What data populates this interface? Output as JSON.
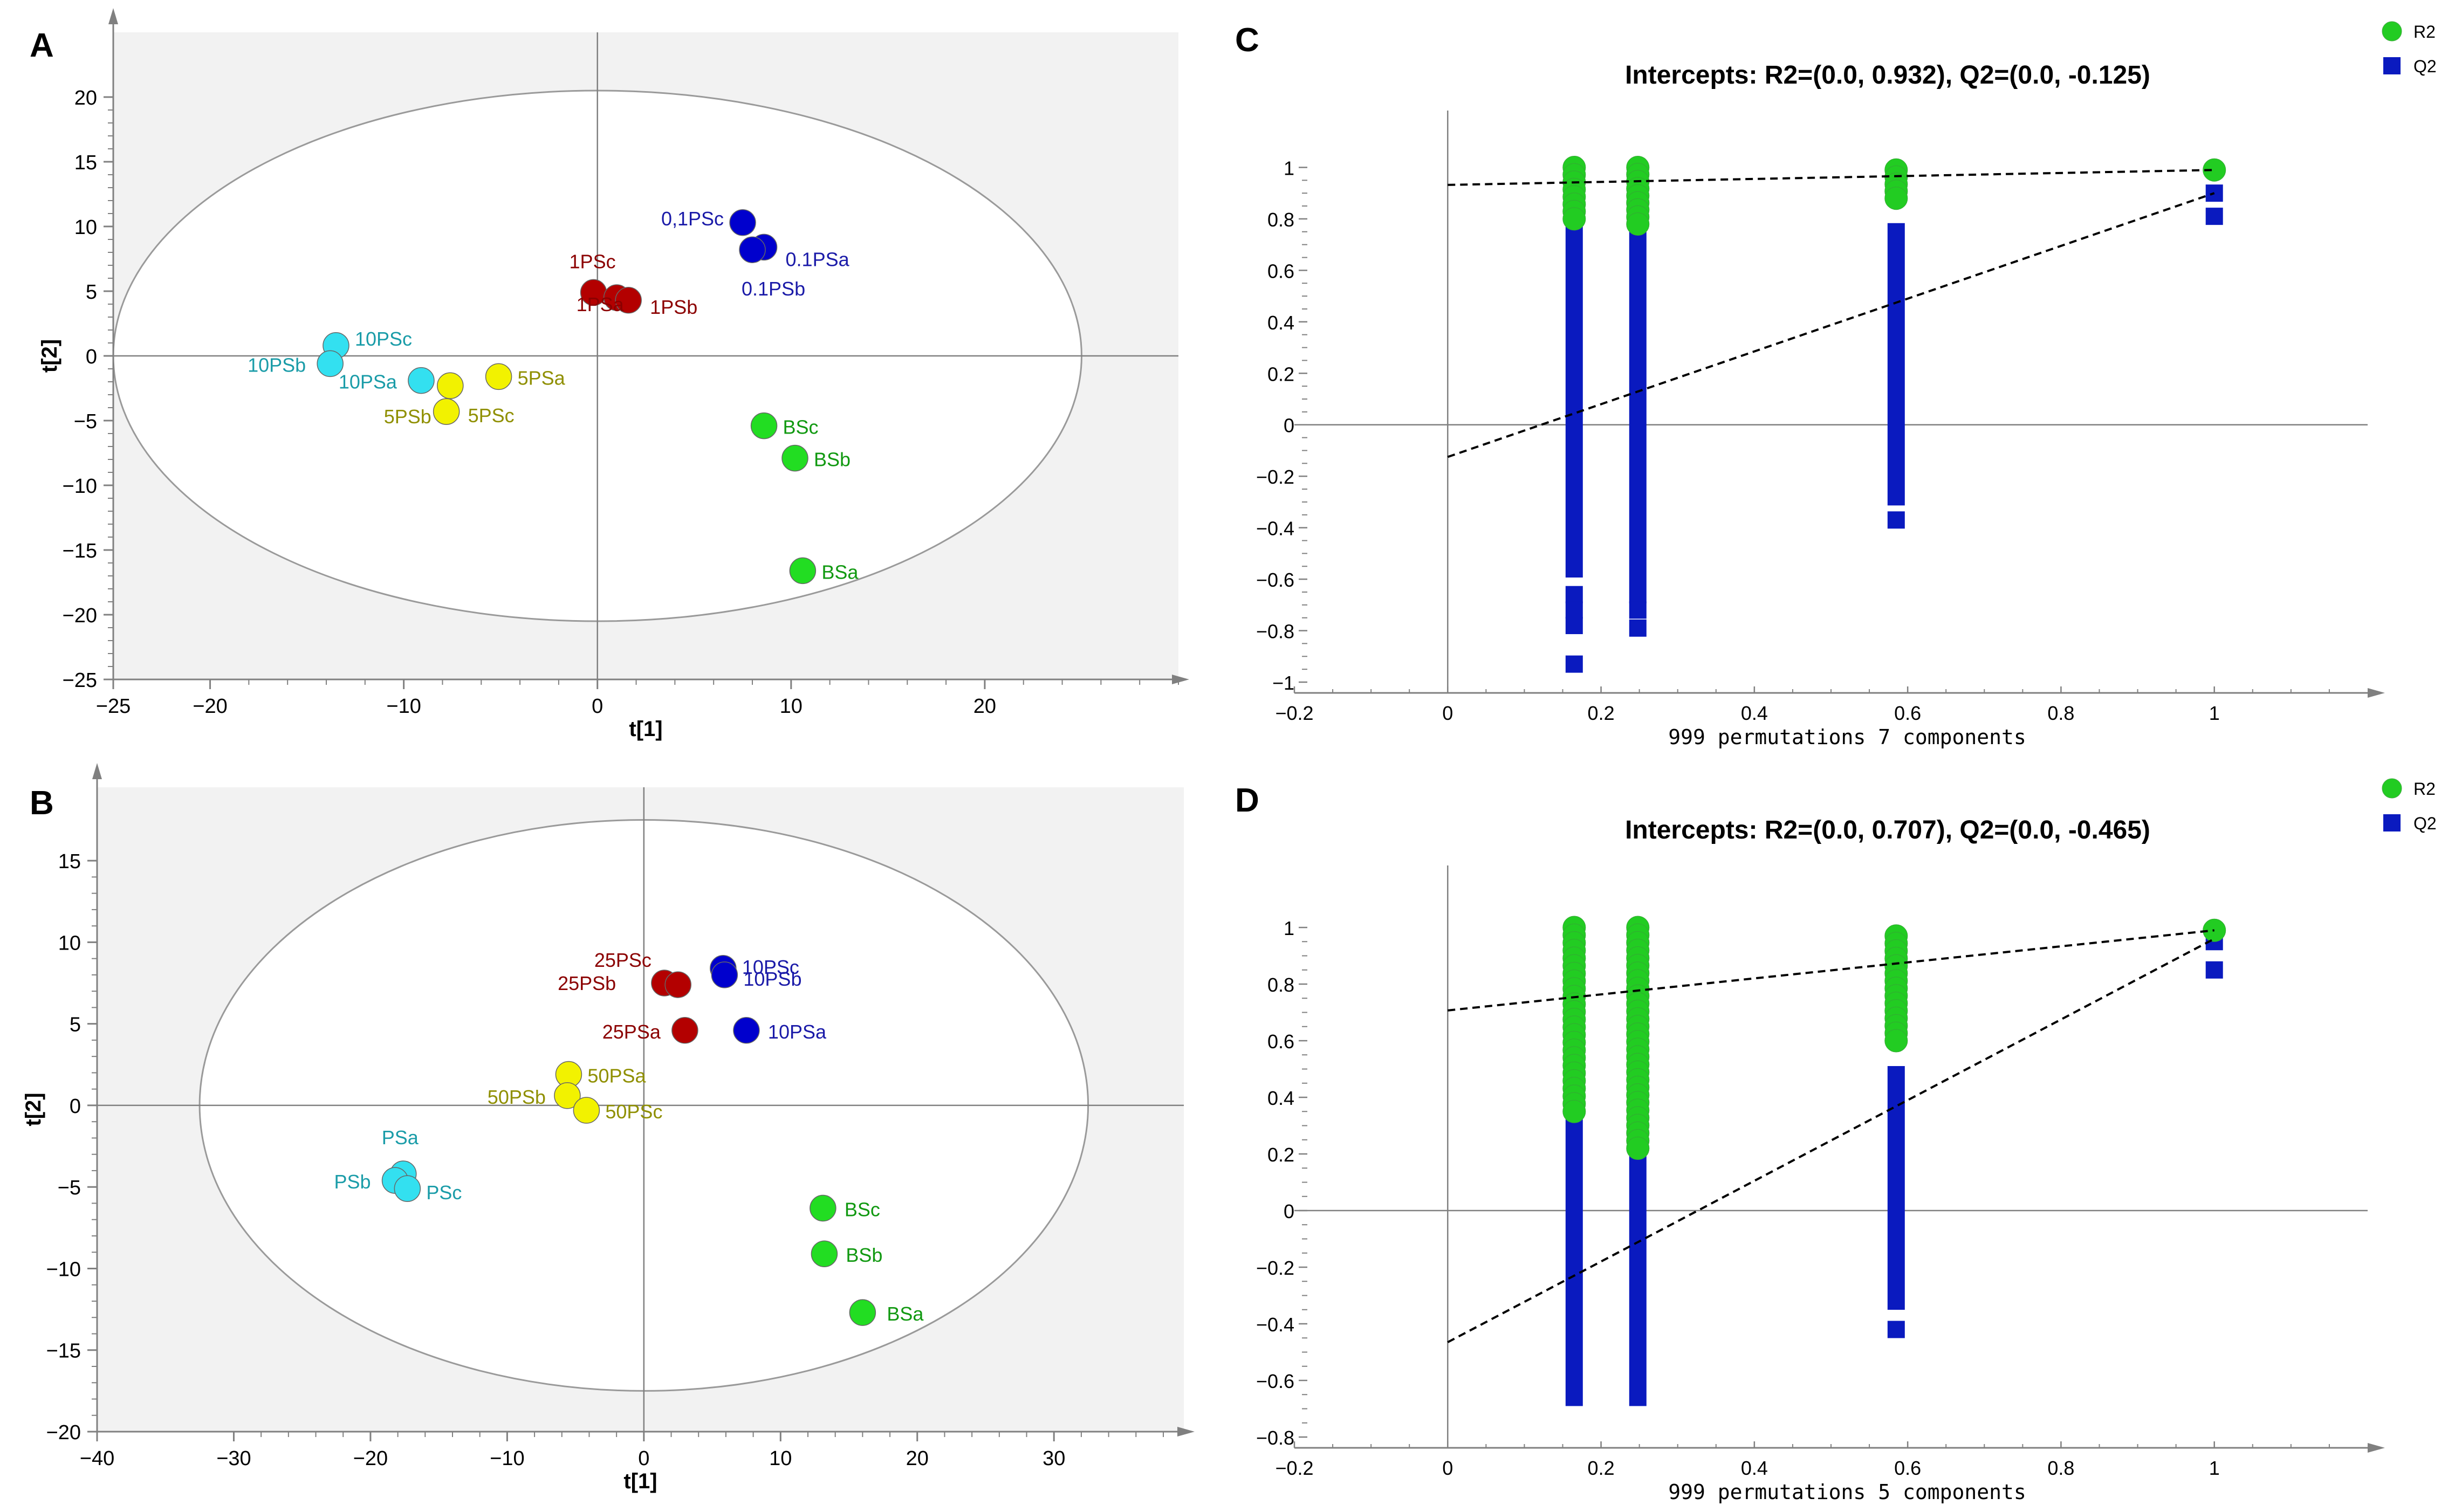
{
  "colors": {
    "plot_bg": "#f2f2f2",
    "axis": "#808080",
    "ellipse": "#9a9a9a",
    "blue": "#0000cd",
    "blue_text": "#1a1aa8",
    "red": "#b30000",
    "red_text": "#8b0000",
    "cyan": "#33e0f0",
    "cyan_text": "#1a9ca8",
    "yellow": "#f2f200",
    "yellow_text": "#8f8f00",
    "green": "#22dd22",
    "green_text": "#119911",
    "r2": "#22cc22",
    "q2": "#0a1abf"
  },
  "chart_data": [
    {
      "panel": "A",
      "type": "scatter",
      "xlabel": "t[1]",
      "ylabel": "t[2]",
      "xlim": [
        -25,
        30
      ],
      "ylim": [
        -25,
        25
      ],
      "xticks": [
        "−25",
        "−20",
        "−10",
        "0",
        "10",
        "20"
      ],
      "xtick_values": [
        -25,
        -20,
        -10,
        0,
        10,
        20
      ],
      "yticks": [
        "20",
        "15",
        "10",
        "5",
        "0",
        "−5",
        "−10",
        "−15",
        "−20",
        "−25"
      ],
      "ytick_values": [
        20,
        15,
        10,
        5,
        0,
        -5,
        -10,
        -15,
        -20,
        -25
      ],
      "ellipse": {
        "cx": 0,
        "cy": 0,
        "rx": 25,
        "ry": 20.5
      },
      "groups": [
        {
          "group": "blue",
          "points": [
            {
              "label": "0,1PSc",
              "x": 7.5,
              "y": 10.3
            },
            {
              "label": "0.1PSa",
              "x": 8.6,
              "y": 8.4
            },
            {
              "label": "0.1PSb",
              "x": 8.0,
              "y": 8.2
            }
          ]
        },
        {
          "group": "red",
          "points": [
            {
              "label": "1PSc",
              "x": -0.2,
              "y": 4.9
            },
            {
              "label": "1PSa",
              "x": 1.0,
              "y": 4.5
            },
            {
              "label": "1PSb",
              "x": 1.6,
              "y": 4.3
            }
          ]
        },
        {
          "group": "cyan",
          "points": [
            {
              "label": "10PSc",
              "x": -13.5,
              "y": 0.8
            },
            {
              "label": "10PSb",
              "x": -13.8,
              "y": -0.6
            },
            {
              "label": "10PSa",
              "x": -9.1,
              "y": -1.9
            }
          ]
        },
        {
          "group": "yellow",
          "points": [
            {
              "label": "5PSa",
              "x": -5.1,
              "y": -1.6
            },
            {
              "label": "5PSb",
              "x": -7.6,
              "y": -2.3
            },
            {
              "label": "5PSc",
              "x": -7.8,
              "y": -4.3
            }
          ]
        },
        {
          "group": "green",
          "points": [
            {
              "label": "BSc",
              "x": 8.6,
              "y": -5.4
            },
            {
              "label": "BSb",
              "x": 10.2,
              "y": -7.9
            },
            {
              "label": "BSa",
              "x": 10.6,
              "y": -16.6
            }
          ]
        }
      ]
    },
    {
      "panel": "B",
      "type": "scatter",
      "xlabel": "t[1]",
      "ylabel": "t[2]",
      "xlim": [
        -40,
        40
      ],
      "ylim": [
        -20,
        20
      ],
      "xticks": [
        "−40",
        "−30",
        "−20",
        "−10",
        "0",
        "10",
        "20",
        "30"
      ],
      "xtick_values": [
        -40,
        -30,
        -20,
        -10,
        0,
        10,
        20,
        30
      ],
      "yticks": [
        "15",
        "10",
        "5",
        "0",
        "−5",
        "−10",
        "−15",
        "−20"
      ],
      "ytick_values": [
        15,
        10,
        5,
        0,
        -5,
        -10,
        -15,
        -20
      ],
      "ellipse": {
        "cx": 0,
        "cy": 0,
        "rx": 32.5,
        "ry": 17.5
      },
      "groups": [
        {
          "group": "blue",
          "points": [
            {
              "label": "10PSc",
              "x": 5.8,
              "y": 8.4
            },
            {
              "label": "10PSb",
              "x": 5.9,
              "y": 8.0
            },
            {
              "label": "10PSa",
              "x": 7.5,
              "y": 4.6
            }
          ]
        },
        {
          "group": "red",
          "points": [
            {
              "label": "25PSc",
              "x": 1.5,
              "y": 7.5
            },
            {
              "label": "25PSb",
              "x": 2.5,
              "y": 7.4
            },
            {
              "label": "25PSa",
              "x": 3.0,
              "y": 4.6
            }
          ]
        },
        {
          "group": "yellow",
          "points": [
            {
              "label": "50PSa",
              "x": -5.5,
              "y": 1.9
            },
            {
              "label": "50PSb",
              "x": -5.6,
              "y": 0.6
            },
            {
              "label": "50PSc",
              "x": -4.2,
              "y": -0.3
            }
          ]
        },
        {
          "group": "cyan",
          "points": [
            {
              "label": "PSa",
              "x": -17.6,
              "y": -4.2
            },
            {
              "label": "PSb",
              "x": -18.2,
              "y": -4.6
            },
            {
              "label": "PSc",
              "x": -17.3,
              "y": -5.1
            }
          ]
        },
        {
          "group": "green",
          "points": [
            {
              "label": "BSc",
              "x": 13.1,
              "y": -6.3
            },
            {
              "label": "BSb",
              "x": 13.2,
              "y": -9.1
            },
            {
              "label": "BSa",
              "x": 16.0,
              "y": -12.7
            }
          ]
        }
      ]
    },
    {
      "panel": "C",
      "type": "permutation-scatter",
      "title": "Intercepts: R2=(0.0, 0.932), Q2=(0.0, -0.125)",
      "xlabel": "999 permutations 7 components",
      "legend": [
        "R2",
        "Q2"
      ],
      "xlim": [
        -0.2,
        1.2
      ],
      "ylim": [
        -1,
        1.2
      ],
      "xticks": [
        "−0.2",
        "0",
        "0.2",
        "0.4",
        "0.6",
        "0.8",
        "1"
      ],
      "xtick_values": [
        -0.2,
        0,
        0.2,
        0.4,
        0.6,
        0.8,
        1
      ],
      "yticks": [
        "1",
        "0.8",
        "0.6",
        "0.4",
        "0.2",
        "0",
        "−0.2",
        "−0.4",
        "−0.6",
        "−0.8",
        "−1"
      ],
      "ytick_values": [
        1,
        0.8,
        0.6,
        0.4,
        0.2,
        0,
        -0.2,
        -0.4,
        -0.6,
        -0.8,
        -1
      ],
      "r2_columns": [
        {
          "x": 0.165,
          "from": 0.8,
          "to": 1.0
        },
        {
          "x": 0.248,
          "from": 0.78,
          "to": 1.0
        },
        {
          "x": 0.585,
          "from": 0.88,
          "to": 0.99
        }
      ],
      "q2_columns": [
        {
          "x": 0.165,
          "from": -0.56,
          "to": 0.76,
          "extras": [
            -0.66,
            -0.72,
            -0.78,
            -0.93
          ]
        },
        {
          "x": 0.248,
          "from": -0.66,
          "to": 0.9,
          "extras": [
            -0.72,
            -0.79
          ]
        },
        {
          "x": 0.585,
          "from": -0.28,
          "to": 0.75,
          "extras": [
            -0.37
          ]
        }
      ],
      "r2_actual": {
        "x": 1.0,
        "y": 0.99
      },
      "q2_actual": [
        {
          "x": 1.0,
          "y": 0.9
        },
        {
          "x": 1.0,
          "y": 0.81
        }
      ],
      "r2_line": {
        "x0": 0,
        "y0": 0.932,
        "x1": 1.0,
        "y1": 0.99
      },
      "q2_line": {
        "x0": 0,
        "y0": -0.125,
        "x1": 1.0,
        "y1": 0.9
      }
    },
    {
      "panel": "D",
      "type": "permutation-scatter",
      "title": "Intercepts: R2=(0.0, 0.707), Q2=(0.0, -0.465)",
      "xlabel": "999 permutations 5 components",
      "legend": [
        "R2",
        "Q2"
      ],
      "xlim": [
        -0.2,
        1.2
      ],
      "ylim": [
        -0.8,
        1.2
      ],
      "xticks": [
        "−0.2",
        "0",
        "0.2",
        "0.4",
        "0.6",
        "0.8",
        "1"
      ],
      "xtick_values": [
        -0.2,
        0,
        0.2,
        0.4,
        0.6,
        0.8,
        1
      ],
      "yticks": [
        "1",
        "0.8",
        "0.6",
        "0.4",
        "0.2",
        "0",
        "−0.2",
        "−0.4",
        "−0.6",
        "−0.8"
      ],
      "ytick_values": [
        1,
        0.8,
        0.6,
        0.4,
        0.2,
        0,
        -0.2,
        -0.4,
        -0.6,
        -0.8
      ],
      "r2_columns": [
        {
          "x": 0.165,
          "from": 0.35,
          "to": 1.0
        },
        {
          "x": 0.248,
          "from": 0.22,
          "to": 1.0
        },
        {
          "x": 0.585,
          "from": 0.6,
          "to": 0.97
        }
      ],
      "q2_columns": [
        {
          "x": 0.165,
          "from": -0.66,
          "to": 0.6,
          "extras": []
        },
        {
          "x": 0.248,
          "from": -0.66,
          "to": 0.82,
          "extras": []
        },
        {
          "x": 0.585,
          "from": -0.32,
          "to": 0.48,
          "extras": [
            -0.42
          ]
        }
      ],
      "r2_actual": {
        "x": 1.0,
        "y": 0.99
      },
      "q2_actual": [
        {
          "x": 1.0,
          "y": 0.95
        },
        {
          "x": 1.0,
          "y": 0.85
        }
      ],
      "r2_line": {
        "x0": 0,
        "y0": 0.707,
        "x1": 1.0,
        "y1": 0.99
      },
      "q2_line": {
        "x0": 0,
        "y0": -0.465,
        "x1": 1.0,
        "y1": 0.96
      }
    }
  ]
}
